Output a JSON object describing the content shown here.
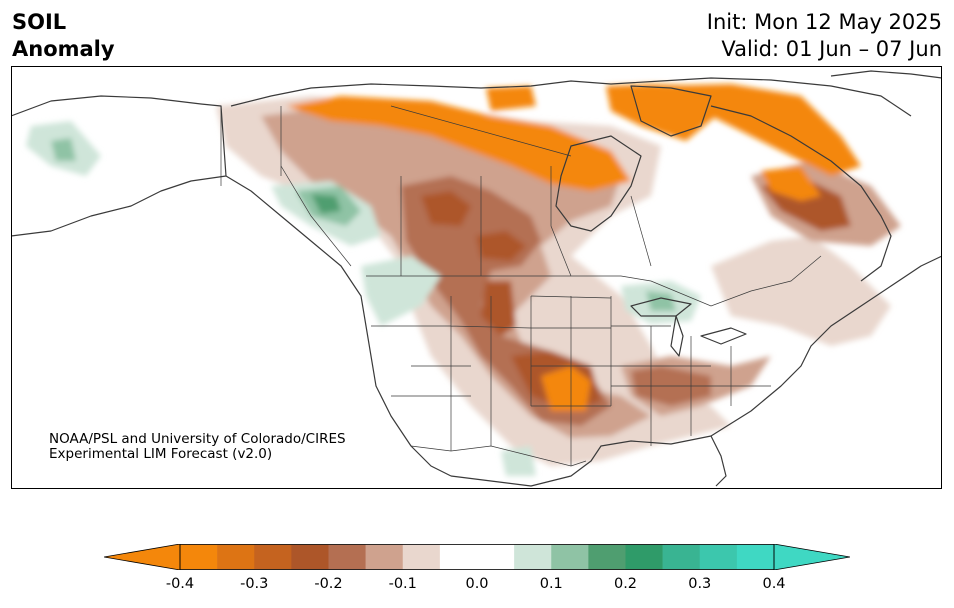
{
  "header": {
    "title_line1": "SOIL",
    "title_line2": "Anomaly",
    "init_text": "Init: Mon 12 May 2025",
    "valid_text": "Valid: 01 Jun – 07 Jun"
  },
  "credit": {
    "line1": "NOAA/PSL and University of Colorado/CIRES",
    "line2": "Experimental LIM Forecast (v2.0)"
  },
  "colorbar": {
    "ticks": [
      "-0.4",
      "-0.3",
      "-0.2",
      "-0.1",
      "0.0",
      "0.1",
      "0.2",
      "0.3",
      "0.4"
    ],
    "bins": [
      "#f4870b",
      "#dd7414",
      "#c5631f",
      "#ad5629",
      "#b46f52",
      "#cfa28e",
      "#e9d7ce",
      "#ffffff",
      "#ffffff",
      "#cfe5d9",
      "#8fc3a5",
      "#4f9e70",
      "#2f9b69",
      "#39b492",
      "#3cc7ad",
      "#3fd8c3"
    ],
    "under_color": "#f4870b",
    "over_color": "#3fd8c3"
  },
  "colors": {
    "land_outline": "#3a3a3a",
    "dry_max": "#f4870b",
    "dry_strong": "#ad5629",
    "dry_mid": "#b46f52",
    "dry_light": "#cfa28e",
    "dry_faint": "#e9d7ce",
    "wet_faint": "#cfe5d9",
    "wet_mid": "#8fc3a5",
    "wet_strong": "#4f9e70"
  }
}
